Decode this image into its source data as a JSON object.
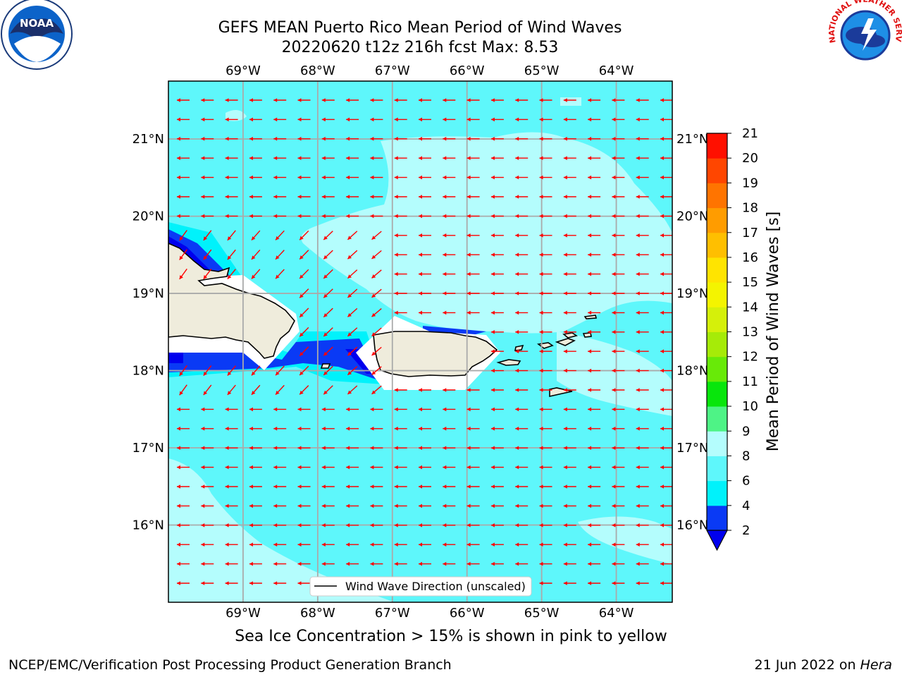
{
  "title": {
    "line1": "GEFS MEAN Puerto Rico Mean Period of Wind Waves",
    "line2": "20220620 t12z 216h fcst   Max: 8.53"
  },
  "logos": {
    "left": "NOAA",
    "left_ring_text": "NATIONAL OCEANIC AND ATMOSPHERIC ADMINISTRATION · U.S. DEPARTMENT OF COMMERCE",
    "right_ring_text": "NATIONAL WEATHER SERVICE"
  },
  "map": {
    "lon_labels": [
      "69°W",
      "68°W",
      "67°W",
      "66°W",
      "65°W",
      "64°W"
    ],
    "lat_labels": [
      "21°N",
      "20°N",
      "19°N",
      "18°N",
      "17°N",
      "16°N"
    ],
    "lon_range": [
      -70.0,
      -63.25
    ],
    "lat_range": [
      15.0,
      21.75
    ],
    "legend_label": "Wind Wave Direction (unscaled)",
    "ocean_color": "#5ef7fb",
    "land_color": "#efecdc",
    "arrow_color": "#ff0000",
    "grid": true
  },
  "colorbar": {
    "label": "Mean Period of Wind Waves [s]",
    "ticks": [
      "2",
      "4",
      "6",
      "8",
      "9",
      "10",
      "11",
      "12",
      "13",
      "14",
      "15",
      "16",
      "17",
      "18",
      "19",
      "20",
      "21"
    ],
    "colors": [
      "#0a3af5",
      "#00f2fb",
      "#5ef7fb",
      "#b4fdfd",
      "#4ef386",
      "#08e60c",
      "#68ea08",
      "#a6eb08",
      "#d5f00a",
      "#f4f400",
      "#ffe400",
      "#ffbf00",
      "#ff9c00",
      "#ff7400",
      "#ff4600",
      "#ff1000"
    ],
    "extend_color": "#0000ee"
  },
  "bottom_note": "Sea Ice Concentration > 15% is shown in pink to yellow",
  "footer": {
    "left": "NCEP/EMC/Verification Post Processing Product Generation Branch",
    "right_prefix": "21 Jun 2022 on ",
    "right_italic": "Hera"
  }
}
